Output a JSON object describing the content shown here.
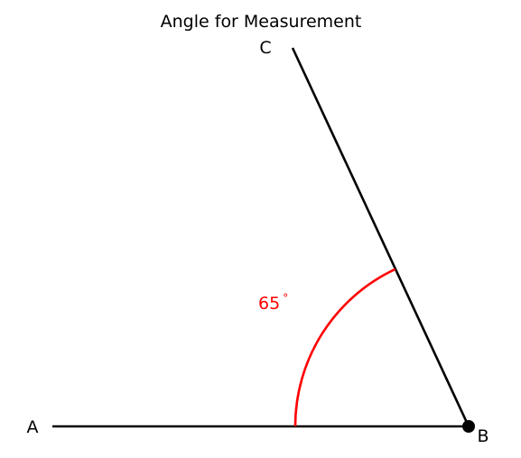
{
  "title": "Angle for Measurement",
  "points": {
    "A": {
      "label": "A"
    },
    "B": {
      "label": "B"
    },
    "C": {
      "label": "C"
    }
  },
  "angle": {
    "value": "65",
    "degree_symbol": "°",
    "degrees": 65,
    "vertex": "B",
    "color": "#ff0000"
  },
  "line_color": "#000000"
}
